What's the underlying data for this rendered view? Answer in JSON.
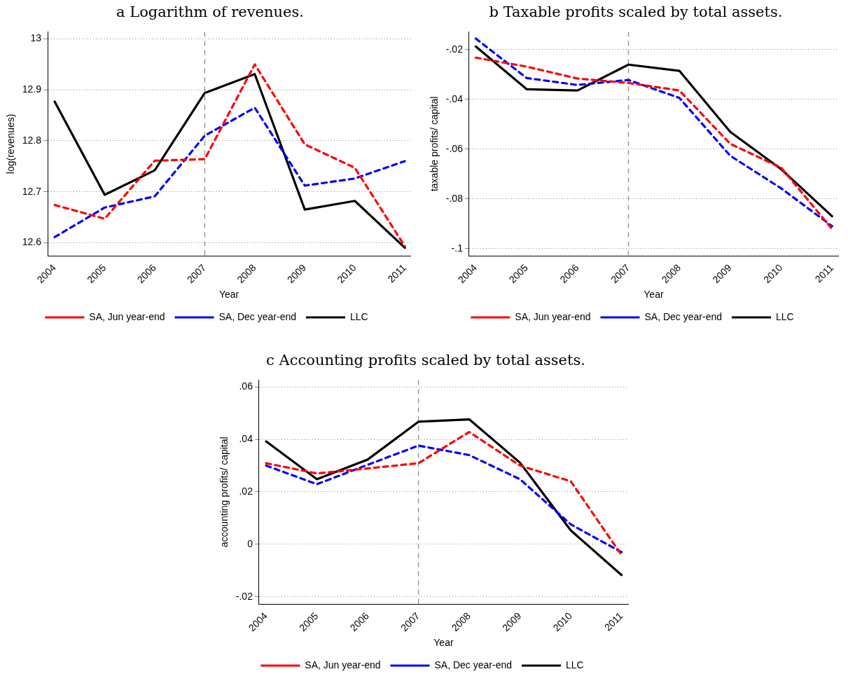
{
  "chart_data": [
    {
      "type": "line",
      "title": "a Logarithm of revenues.",
      "xlabel": "Year",
      "ylabel": "log(revenues)",
      "x": [
        2004,
        2005,
        2006,
        2007,
        2008,
        2009,
        2010,
        2011
      ],
      "series": [
        {
          "name": "SA, Jun year-end",
          "color": "#ff0000",
          "line_style": "dashed",
          "values": [
            12.674,
            12.647,
            12.761,
            12.764,
            12.95,
            12.793,
            12.747,
            12.593
          ]
        },
        {
          "name": "SA, Dec year-end",
          "color": "#0000ff",
          "line_style": "dashed",
          "values": [
            12.611,
            12.669,
            12.691,
            12.81,
            12.865,
            12.712,
            12.726,
            12.76
          ]
        },
        {
          "name": "LLC",
          "color": "#000000",
          "line_style": "solid",
          "values": [
            12.877,
            12.694,
            12.742,
            12.894,
            12.931,
            12.665,
            12.682,
            12.59
          ]
        }
      ],
      "xlim": [
        2003.86,
        2011.11
      ],
      "xticks": [
        2004,
        2005,
        2006,
        2007,
        2008,
        2009,
        2010,
        2011
      ],
      "ylim": [
        12.574,
        13.014
      ],
      "yticks": [
        12.6,
        12.7,
        12.8,
        12.9,
        13
      ],
      "ref_lines": [
        {
          "axis": "x",
          "value": 2007,
          "color": "#999999",
          "line_style": "dashed"
        }
      ],
      "grid": "y",
      "legend": "bottom",
      "marker": "none"
    },
    {
      "type": "line",
      "title": "b Taxable profits scaled by total assets.",
      "xlabel": "Year",
      "ylabel": "taxable profits/ capital",
      "x": [
        2004,
        2005,
        2006,
        2007,
        2008,
        2009,
        2010,
        2011
      ],
      "series": [
        {
          "name": "SA, Jun year-end",
          "color": "#ff0000",
          "line_style": "dashed",
          "values": [
            -0.0232,
            -0.0268,
            -0.0316,
            -0.0334,
            -0.0364,
            -0.0579,
            -0.0675,
            -0.0922
          ]
        },
        {
          "name": "SA, Dec year-end",
          "color": "#0000ff",
          "line_style": "dashed",
          "values": [
            -0.0155,
            -0.0314,
            -0.0342,
            -0.0322,
            -0.0394,
            -0.0627,
            -0.0758,
            -0.091
          ]
        },
        {
          "name": "LLC",
          "color": "#000000",
          "line_style": "solid",
          "values": [
            -0.0187,
            -0.0359,
            -0.0364,
            -0.026,
            -0.0285,
            -0.0531,
            -0.0681,
            -0.087
          ]
        }
      ],
      "xlim": [
        2003.87,
        2011.12
      ],
      "xticks": [
        2004,
        2005,
        2006,
        2007,
        2008,
        2009,
        2010,
        2011
      ],
      "ylim": [
        -0.103,
        -0.0128
      ],
      "yticks": [
        {
          "value": -0.1,
          "label": "-.1"
        },
        {
          "value": -0.08,
          "label": "-.08"
        },
        {
          "value": -0.06,
          "label": "-.06"
        },
        {
          "value": -0.04,
          "label": "-.04"
        },
        {
          "value": -0.02,
          "label": "-.02"
        }
      ],
      "ref_lines": [
        {
          "axis": "x",
          "value": 2007,
          "color": "#999999",
          "line_style": "dashed"
        }
      ],
      "grid": "y",
      "legend": "bottom",
      "marker": "none"
    },
    {
      "type": "line",
      "title": "c Accounting profits scaled by total assets.",
      "xlabel": "Year",
      "ylabel": "accounting profits/ capital",
      "x": [
        2004,
        2005,
        2006,
        2007,
        2008,
        2009,
        2010,
        2011
      ],
      "series": [
        {
          "name": "SA, Jun year-end",
          "color": "#ff0000",
          "line_style": "dashed",
          "values": [
            0.0309,
            0.027,
            0.0289,
            0.0309,
            0.0428,
            0.03,
            0.024,
            -0.0041
          ]
        },
        {
          "name": "SA, Dec year-end",
          "color": "#0000ff",
          "line_style": "dashed",
          "values": [
            0.03,
            0.0229,
            0.0303,
            0.0376,
            0.034,
            0.0248,
            0.0076,
            -0.003
          ]
        },
        {
          "name": "LLC",
          "color": "#000000",
          "line_style": "solid",
          "values": [
            0.0392,
            0.0248,
            0.0323,
            0.0467,
            0.0476,
            0.0311,
            0.0053,
            -0.0117
          ]
        }
      ],
      "xlim": [
        2003.86,
        2011.13
      ],
      "xticks": [
        2004,
        2005,
        2006,
        2007,
        2008,
        2009,
        2010,
        2011
      ],
      "ylim": [
        -0.0228,
        0.0626
      ],
      "yticks": [
        {
          "value": -0.02,
          "label": "-.02"
        },
        0,
        {
          "value": 0.02,
          "label": ".02"
        },
        {
          "value": 0.04,
          "label": ".04"
        },
        {
          "value": 0.06,
          "label": ".06"
        }
      ],
      "ref_lines": [
        {
          "axis": "x",
          "value": 2007,
          "color": "#999999",
          "line_style": "dashed"
        }
      ],
      "grid": "y",
      "legend": "bottom",
      "marker": "none"
    }
  ]
}
